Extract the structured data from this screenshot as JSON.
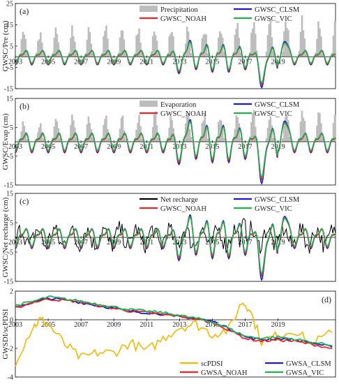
{
  "colors": {
    "precipitation": "#bdbdbd",
    "evaporation": "#bdbdbd",
    "net_recharge": "#000000",
    "clsm": "#1a1acc",
    "noah": "#e8242a",
    "vic": "#20b050",
    "scpdsi": "#f2b705"
  },
  "chart_data": [
    {
      "type": "bar+line",
      "panel_label": "(a)",
      "ylabel": "GWSC/Pre (cm)",
      "ylim": [
        -15,
        25
      ],
      "yticks": [
        -15,
        -5,
        5,
        15,
        25
      ],
      "xlim": [
        2003,
        2022.5
      ],
      "xticks": [
        "2003",
        "2005",
        "2007",
        "2009",
        "2011",
        "2013",
        "2015",
        "2017",
        "2019"
      ],
      "legend": [
        "Precipitation",
        "GWSC_CLSM",
        "GWSC_NOAH",
        "GWSC_VIC"
      ],
      "bar_series": {
        "name": "Precipitation",
        "amplitude_cm": [
          12,
          11,
          12,
          13,
          12,
          13,
          14,
          13,
          14,
          13,
          12,
          14,
          13,
          15,
          17,
          16,
          18,
          17,
          16,
          14
        ]
      },
      "series": [
        {
          "name": "GWSC_CLSM",
          "approx_range": [
            -10.5,
            6.5
          ]
        },
        {
          "name": "GWSC_NOAH",
          "approx_range": [
            -11,
            6
          ]
        },
        {
          "name": "GWSC_VIC",
          "approx_range": [
            -9.5,
            7
          ]
        }
      ]
    },
    {
      "type": "bar+line",
      "panel_label": "(b)",
      "ylabel": "GWSC/Evap (cm)",
      "ylim": [
        -15,
        15
      ],
      "yticks": [
        -15,
        -5,
        5,
        15
      ],
      "xlim": [
        2003,
        2022.5
      ],
      "xticks": [
        "2003",
        "2005",
        "2007",
        "2009",
        "2011",
        "2013",
        "2015",
        "2017",
        "2019"
      ],
      "legend": [
        "Evaporation",
        "GWSC_CLSM",
        "GWSC_NOAH",
        "GWSC_VIC"
      ],
      "bar_series": {
        "name": "Evaporation",
        "amplitude_cm": [
          7,
          7,
          8,
          8,
          8,
          8,
          8,
          8,
          9,
          9,
          9,
          9,
          9,
          9,
          10,
          10,
          10,
          10,
          9,
          9
        ]
      },
      "series": [
        {
          "name": "GWSC_CLSM",
          "approx_range": [
            -10.5,
            6.5
          ]
        },
        {
          "name": "GWSC_NOAH",
          "approx_range": [
            -11,
            6
          ]
        },
        {
          "name": "GWSC_VIC",
          "approx_range": [
            -9.5,
            7
          ]
        }
      ]
    },
    {
      "type": "line",
      "panel_label": "(c)",
      "ylabel": "GWSC/Net recharge (cm)",
      "ylim": [
        -15,
        15
      ],
      "yticks": [
        -15,
        -5,
        5,
        15
      ],
      "xlim": [
        2003,
        2022.5
      ],
      "xticks": [
        "2003",
        "2005",
        "2007",
        "2009",
        "2011",
        "2013",
        "2015",
        "2017",
        "2019"
      ],
      "legend": [
        "Net recharge",
        "GWSC_CLSM",
        "GWSC_NOAH",
        "GWSC_VIC"
      ],
      "series": [
        {
          "name": "Net recharge",
          "approx_range": [
            -5,
            10
          ]
        },
        {
          "name": "GWSC_CLSM",
          "approx_range": [
            -10.5,
            6.5
          ]
        },
        {
          "name": "GWSC_NOAH",
          "approx_range": [
            -11,
            6
          ]
        },
        {
          "name": "GWSC_VIC",
          "approx_range": [
            -9.5,
            7
          ]
        }
      ]
    },
    {
      "type": "line",
      "panel_label": "(d)",
      "ylabel": "GWSDI/scPDSI",
      "ylim": [
        -4,
        2
      ],
      "yticks": [
        -4,
        -2,
        0,
        2
      ],
      "xlim": [
        2003,
        2022.5
      ],
      "xticks": [
        "2003",
        "2005",
        "2007",
        "2009",
        "2011",
        "2013",
        "2015",
        "2017",
        "2019"
      ],
      "legend": [
        "scPDSI",
        "GWSA_CLSM",
        "GWSA_NOAH",
        "GWSA_VIC"
      ],
      "series": [
        {
          "name": "scPDSI",
          "x": [
            2003,
            2004,
            2004.5,
            2005,
            2006,
            2007,
            2008,
            2009,
            2010,
            2011,
            2012,
            2013,
            2014,
            2015,
            2016,
            2016.8,
            2017.2,
            2018,
            2019,
            2020,
            2021,
            2022.3
          ],
          "y": [
            -2.9,
            -0.6,
            0.0,
            -0.3,
            -1.7,
            -2.7,
            -2.3,
            -2.3,
            -1.6,
            -2.2,
            -1.3,
            -0.5,
            -0.3,
            -1.0,
            -0.7,
            1.25,
            0.9,
            -1.5,
            -1.1,
            -0.7,
            -1.7,
            -0.9
          ]
        },
        {
          "name": "GWSA_CLSM",
          "x": [
            2003,
            2004,
            2005,
            2006,
            2007,
            2008,
            2009,
            2010,
            2011,
            2012,
            2013,
            2014,
            2015,
            2016,
            2017,
            2018,
            2019,
            2020,
            2021,
            2022.3
          ],
          "y": [
            0.9,
            1.2,
            1.5,
            1.4,
            1.2,
            1.0,
            0.8,
            0.6,
            0.5,
            0.4,
            0.2,
            0.1,
            -0.1,
            -0.6,
            -1.2,
            -1.4,
            -1.3,
            -1.4,
            -1.6,
            -1.9
          ]
        },
        {
          "name": "GWSA_NOAH",
          "x": [
            2003,
            2004,
            2005,
            2006,
            2007,
            2008,
            2009,
            2010,
            2011,
            2012,
            2013,
            2014,
            2015,
            2016,
            2017,
            2018,
            2019,
            2020,
            2021,
            2022.3
          ],
          "y": [
            0.8,
            1.2,
            1.45,
            1.35,
            1.25,
            1.0,
            0.8,
            0.6,
            0.5,
            0.35,
            0.25,
            0.05,
            -0.2,
            -0.7,
            -1.3,
            -1.5,
            -1.4,
            -1.5,
            -1.7,
            -2.0
          ]
        },
        {
          "name": "GWSA_VIC",
          "x": [
            2003,
            2004,
            2005,
            2006,
            2007,
            2008,
            2009,
            2010,
            2011,
            2012,
            2013,
            2014,
            2015,
            2016,
            2017,
            2018,
            2019,
            2020,
            2021,
            2022.3
          ],
          "y": [
            1.0,
            1.25,
            1.6,
            1.45,
            1.3,
            1.1,
            0.9,
            0.7,
            0.6,
            0.5,
            0.3,
            0.1,
            -0.15,
            -0.6,
            -1.15,
            -1.3,
            -1.2,
            -1.35,
            -1.55,
            -1.8
          ]
        }
      ]
    }
  ]
}
